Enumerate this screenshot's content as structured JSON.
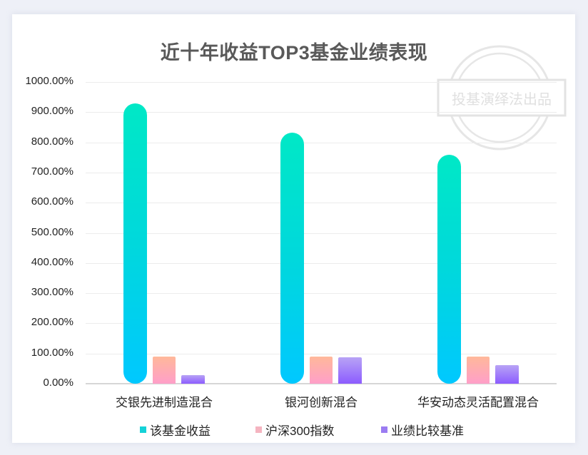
{
  "chart_data": {
    "type": "bar",
    "title": "近十年收益TOP3基金业绩表现",
    "watermark": "投基演绎法出品",
    "xlabel": "",
    "ylabel": "",
    "ylim": [
      0,
      1000
    ],
    "y_ticks": [
      "1000.00%",
      "900.00%",
      "800.00%",
      "700.00%",
      "600.00%",
      "500.00%",
      "400.00%",
      "300.00%",
      "200.00%",
      "100.00%",
      "0.00%"
    ],
    "grid": true,
    "legend_position": "bottom",
    "categories": [
      "交银先进制造混合",
      "银河创新混合",
      "华安动态灵活配置混合"
    ],
    "series": [
      {
        "name": "该基金收益",
        "color": "#00d8dc",
        "values": [
          929,
          832,
          759
        ]
      },
      {
        "name": "沪深300指数",
        "color": "#f7b2bd",
        "values": [
          90,
          90,
          90
        ]
      },
      {
        "name": "业绩比较基准",
        "color": "#9b7cf2",
        "values": [
          28,
          88,
          62
        ]
      }
    ]
  }
}
